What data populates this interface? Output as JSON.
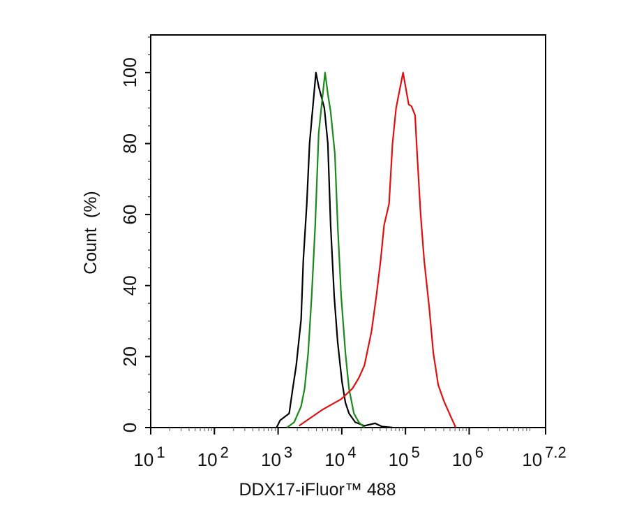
{
  "chart_data": {
    "type": "line",
    "title": "",
    "xlabel": "DDX17-iFluor™ 488",
    "ylabel": "Count  (%)",
    "x_scale": "log",
    "xlim": [
      10,
      15848932
    ],
    "ylim": [
      0,
      110.6
    ],
    "grid": false,
    "legend": "none",
    "x_ticks": [
      {
        "base": "10",
        "exp": "1",
        "value": 10
      },
      {
        "base": "10",
        "exp": "2",
        "value": 100
      },
      {
        "base": "10",
        "exp": "3",
        "value": 1000
      },
      {
        "base": "10",
        "exp": "4",
        "value": 10000
      },
      {
        "base": "10",
        "exp": "5",
        "value": 100000
      },
      {
        "base": "10",
        "exp": "6",
        "value": 1000000
      },
      {
        "base": "10",
        "exp": "7.2",
        "value": 15848932
      }
    ],
    "y_ticks": [
      "0",
      "20",
      "40",
      "60",
      "80",
      "100"
    ],
    "series": [
      {
        "color": "#000000",
        "points": [
          [
            946,
            0
          ],
          [
            1074,
            2
          ],
          [
            1493,
            4
          ],
          [
            1698,
            11
          ],
          [
            1928,
            17.5
          ],
          [
            2302,
            30.5
          ],
          [
            2484,
            47
          ],
          [
            2818,
            63
          ],
          [
            3119,
            80
          ],
          [
            3925,
            100
          ],
          [
            4345,
            96
          ],
          [
            5324,
            90
          ],
          [
            6045,
            80
          ],
          [
            6692,
            57
          ],
          [
            7600,
            37
          ],
          [
            8630,
            24
          ],
          [
            10050,
            13
          ],
          [
            11400,
            7
          ],
          [
            12970,
            4
          ],
          [
            16300,
            1.5
          ],
          [
            22650,
            0.5
          ],
          [
            33200,
            1.2
          ],
          [
            42760,
            0.3
          ],
          [
            62600,
            0
          ]
        ]
      },
      {
        "color": "#1a8a1a",
        "points": [
          [
            1383,
            0
          ],
          [
            1786,
            1.5
          ],
          [
            2302,
            6
          ],
          [
            2612,
            11
          ],
          [
            2965,
            21
          ],
          [
            3370,
            37
          ],
          [
            3828,
            57
          ],
          [
            4345,
            83
          ],
          [
            5460,
            100
          ],
          [
            6045,
            94
          ],
          [
            6692,
            89
          ],
          [
            7800,
            77
          ],
          [
            8630,
            57
          ],
          [
            9795,
            37
          ],
          [
            11400,
            21
          ],
          [
            12970,
            11
          ],
          [
            15490,
            4
          ],
          [
            18500,
            1.5
          ],
          [
            22650,
            0
          ]
        ]
      },
      {
        "color": "#e01010",
        "points": [
          [
            2133,
            0.5
          ],
          [
            4930,
            5
          ],
          [
            9795,
            8
          ],
          [
            14720,
            11
          ],
          [
            18500,
            14
          ],
          [
            22650,
            17.5
          ],
          [
            29240,
            27
          ],
          [
            34920,
            37
          ],
          [
            40660,
            47
          ],
          [
            46140,
            57
          ],
          [
            55200,
            63
          ],
          [
            62650,
            80
          ],
          [
            71160,
            90
          ],
          [
            91660,
            100
          ],
          [
            112400,
            91
          ],
          [
            124400,
            90.5
          ],
          [
            141300,
            88
          ],
          [
            152500,
            77
          ],
          [
            173100,
            60
          ],
          [
            196600,
            47
          ],
          [
            235100,
            34
          ],
          [
            273600,
            21
          ],
          [
            326700,
            12
          ],
          [
            400700,
            7.5
          ],
          [
            516500,
            3
          ],
          [
            616600,
            0
          ]
        ]
      }
    ]
  }
}
